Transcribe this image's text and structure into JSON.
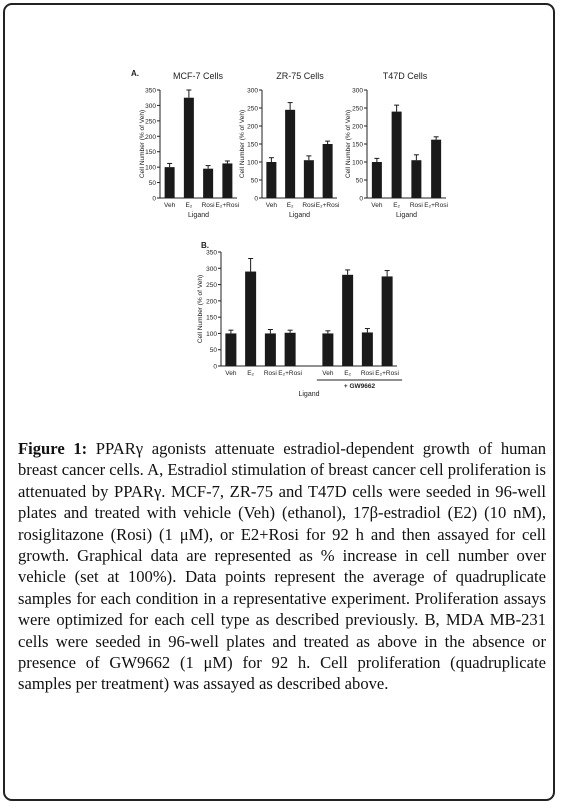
{
  "chart_data": [
    {
      "type": "bar",
      "panel": "A.",
      "title": "MCF-7 Cells",
      "categories": [
        "Veh",
        "E₂",
        "Rosi",
        "E₂+Rosi"
      ],
      "values": [
        100,
        325,
        95,
        112
      ],
      "errors": [
        12,
        25,
        10,
        8
      ],
      "ylabel": "Cell Number (% of Veh)",
      "xlabel": "Ligand",
      "yticks": [
        0,
        50,
        100,
        150,
        200,
        250,
        300,
        350
      ],
      "ylim": [
        0,
        350
      ]
    },
    {
      "type": "bar",
      "panel": "",
      "title": "ZR-75 Cells",
      "categories": [
        "Veh",
        "E₂",
        "Rosi",
        "E₂+Rosi"
      ],
      "values": [
        100,
        245,
        105,
        150
      ],
      "errors": [
        12,
        20,
        12,
        8
      ],
      "ylabel": "Cell Number (% of Veh)",
      "xlabel": "Ligand",
      "yticks": [
        0,
        50,
        100,
        150,
        200,
        250,
        300
      ],
      "ylim": [
        0,
        300
      ]
    },
    {
      "type": "bar",
      "panel": "",
      "title": "T47D Cells",
      "categories": [
        "Veh",
        "E₂",
        "Rosi",
        "E₂+Rosi"
      ],
      "values": [
        100,
        240,
        105,
        162
      ],
      "errors": [
        10,
        18,
        15,
        8
      ],
      "ylabel": "Cell Number (% of Veh)",
      "xlabel": "Ligand",
      "yticks": [
        0,
        50,
        100,
        150,
        200,
        250,
        300
      ],
      "ylim": [
        0,
        300
      ]
    },
    {
      "type": "bar",
      "panel": "B.",
      "title": "",
      "categories": [
        "Veh",
        "E₂",
        "Rosi",
        "E₂+Rosi",
        "Veh",
        "E₂",
        "Rosi",
        "E₂+Rosi"
      ],
      "values": [
        100,
        290,
        100,
        102,
        100,
        280,
        103,
        275
      ],
      "errors": [
        10,
        40,
        12,
        8,
        8,
        15,
        12,
        18
      ],
      "ylabel": "Cell Number (% of Veh)",
      "xlabel": "Ligand",
      "group_label": "+ GW9662",
      "yticks": [
        0,
        50,
        100,
        150,
        200,
        250,
        300,
        350
      ],
      "ylim": [
        0,
        350
      ]
    }
  ],
  "caption": {
    "label": "Figure 1:",
    "text": " PPARγ agonists attenuate estradiol-dependent growth of human breast cancer cells. A, Estradiol stimulation of breast cancer cell proliferation is attenuated by PPARγ. MCF-7, ZR-75 and T47D cells were seeded in 96-well plates and treated with vehicle (Veh) (ethanol), 17β-estradiol (E2) (10 nM), rosiglitazone (Rosi) (1 μM), or E2+Rosi for 92 h and then assayed for cell growth. Graphical data are represented as % increase in cell number over vehicle (set at 100%). Data points represent the average of quadruplicate samples for each condition in a representative experiment. Proliferation assays were optimized for each cell type as described previously. B, MDA MB-231 cells were seeded in 96-well plates and treated as above in the absence or presence of GW9662 (1 μM) for 92 h. Cell proliferation (quadruplicate samples per treatment) was assayed as described above."
  }
}
